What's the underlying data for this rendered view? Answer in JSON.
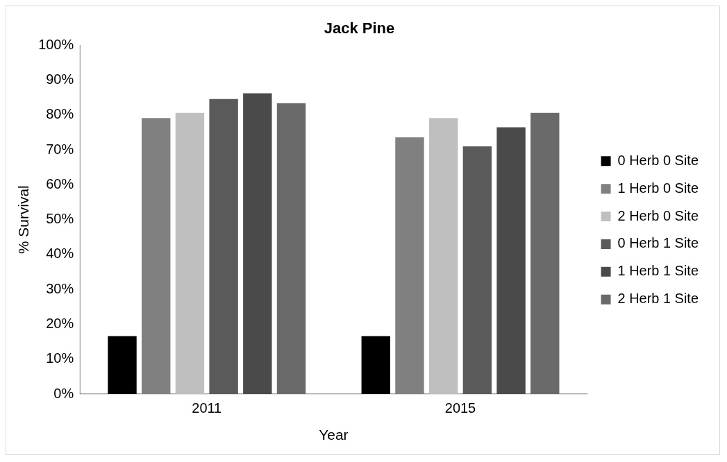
{
  "chart_data": {
    "type": "bar",
    "title": "Jack Pine",
    "xlabel": "Year",
    "ylabel": "% Survival",
    "categories": [
      "2011",
      "2015"
    ],
    "series": [
      {
        "name": "0 Herb 0 Site",
        "color": "#000000",
        "values": [
          16.6,
          16.6
        ]
      },
      {
        "name": "1 Herb 0 Site",
        "color": "#808080",
        "values": [
          79.1,
          73.6
        ]
      },
      {
        "name": "2 Herb 0 Site",
        "color": "#bfbfbf",
        "values": [
          80.6,
          79.1
        ]
      },
      {
        "name": "0 Herb 1 Site",
        "color": "#5a5a5a",
        "values": [
          84.6,
          71.0
        ]
      },
      {
        "name": "1 Herb 1 Site",
        "color": "#4a4a4a",
        "values": [
          86.2,
          76.5
        ]
      },
      {
        "name": "2 Herb 1 Site",
        "color": "#6a6a6a",
        "values": [
          83.4,
          80.6
        ]
      }
    ],
    "ylim": [
      0,
      100
    ],
    "yticks": [
      {
        "value": 0,
        "label": "0%"
      },
      {
        "value": 10,
        "label": "10%"
      },
      {
        "value": 20,
        "label": "20%"
      },
      {
        "value": 30,
        "label": "30%"
      },
      {
        "value": 40,
        "label": "40%"
      },
      {
        "value": 50,
        "label": "50%"
      },
      {
        "value": 60,
        "label": "60%"
      },
      {
        "value": 70,
        "label": "70%"
      },
      {
        "value": 80,
        "label": "80%"
      },
      {
        "value": 90,
        "label": "90%"
      },
      {
        "value": 100,
        "label": "100%"
      }
    ],
    "grid": false,
    "legend": "right"
  }
}
